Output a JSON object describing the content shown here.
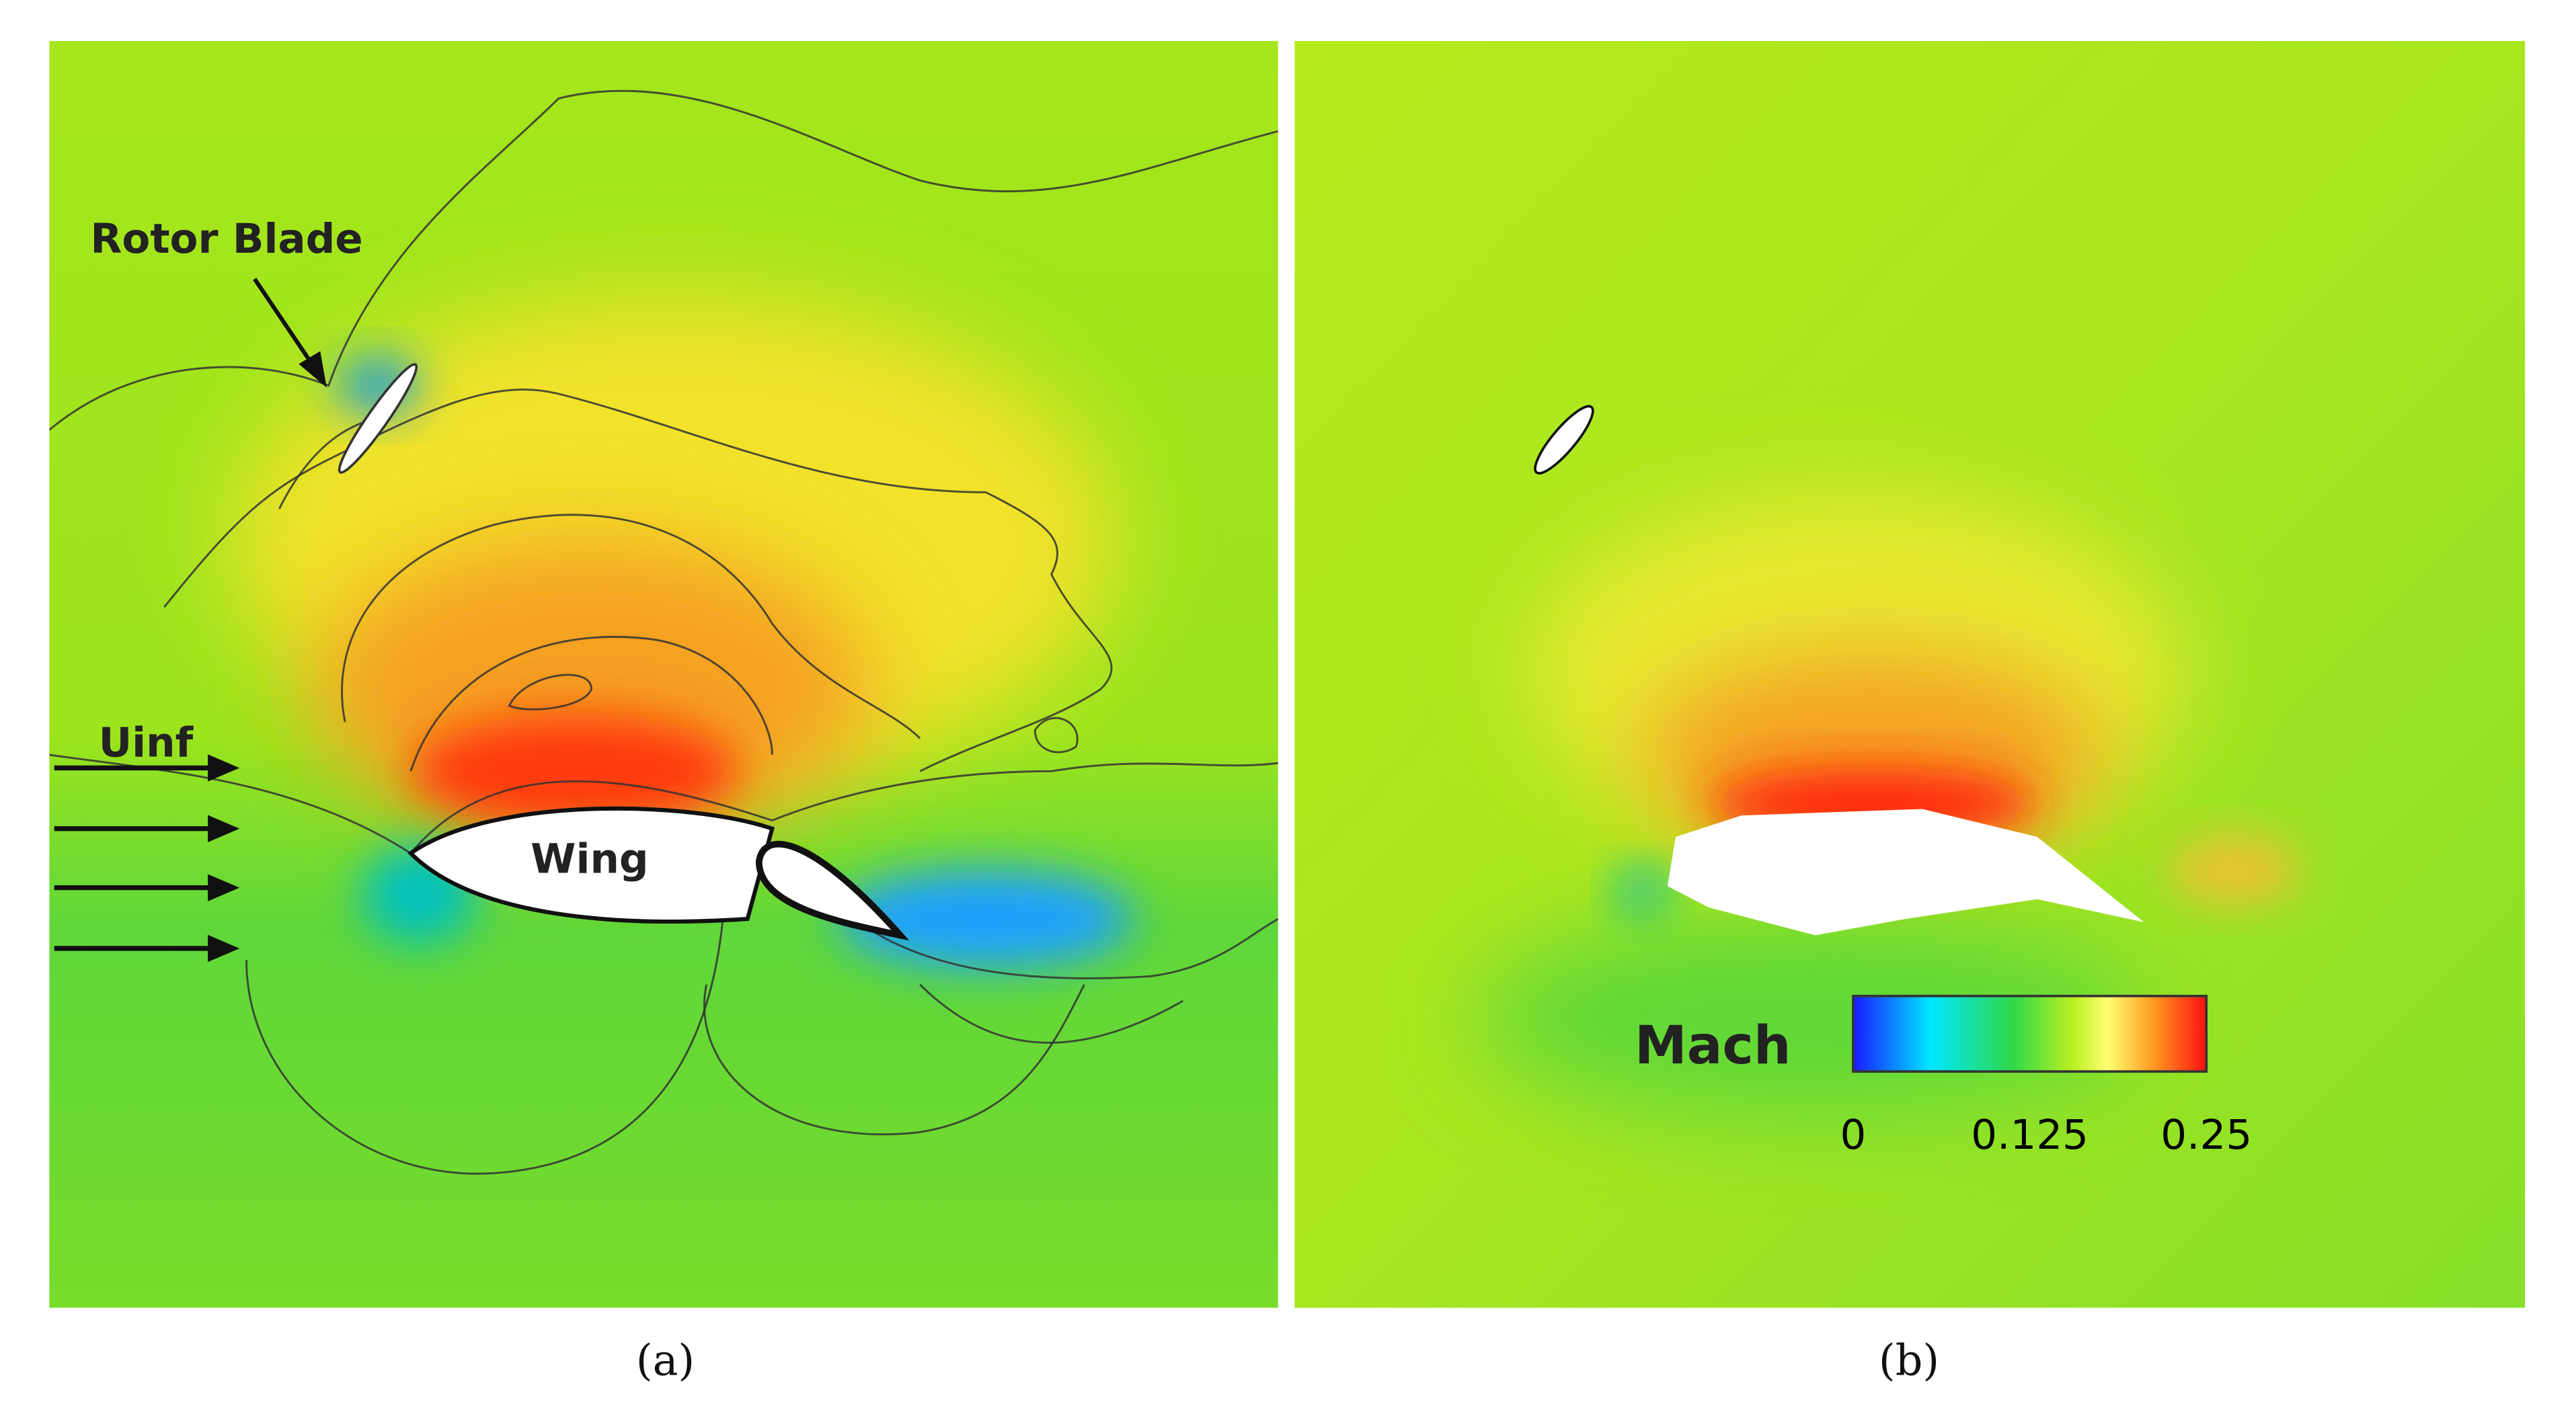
{
  "panels": [
    {
      "label": "(a)",
      "annotations": {
        "rotor_blade": "Rotor Blade",
        "uinf": "Uinf",
        "wing": "Wing"
      }
    },
    {
      "label": "(b)",
      "colorbar": {
        "title": "Mach",
        "lim": [
          0,
          0.25
        ],
        "ticks": [
          0,
          0.125,
          0.25
        ]
      }
    }
  ]
}
